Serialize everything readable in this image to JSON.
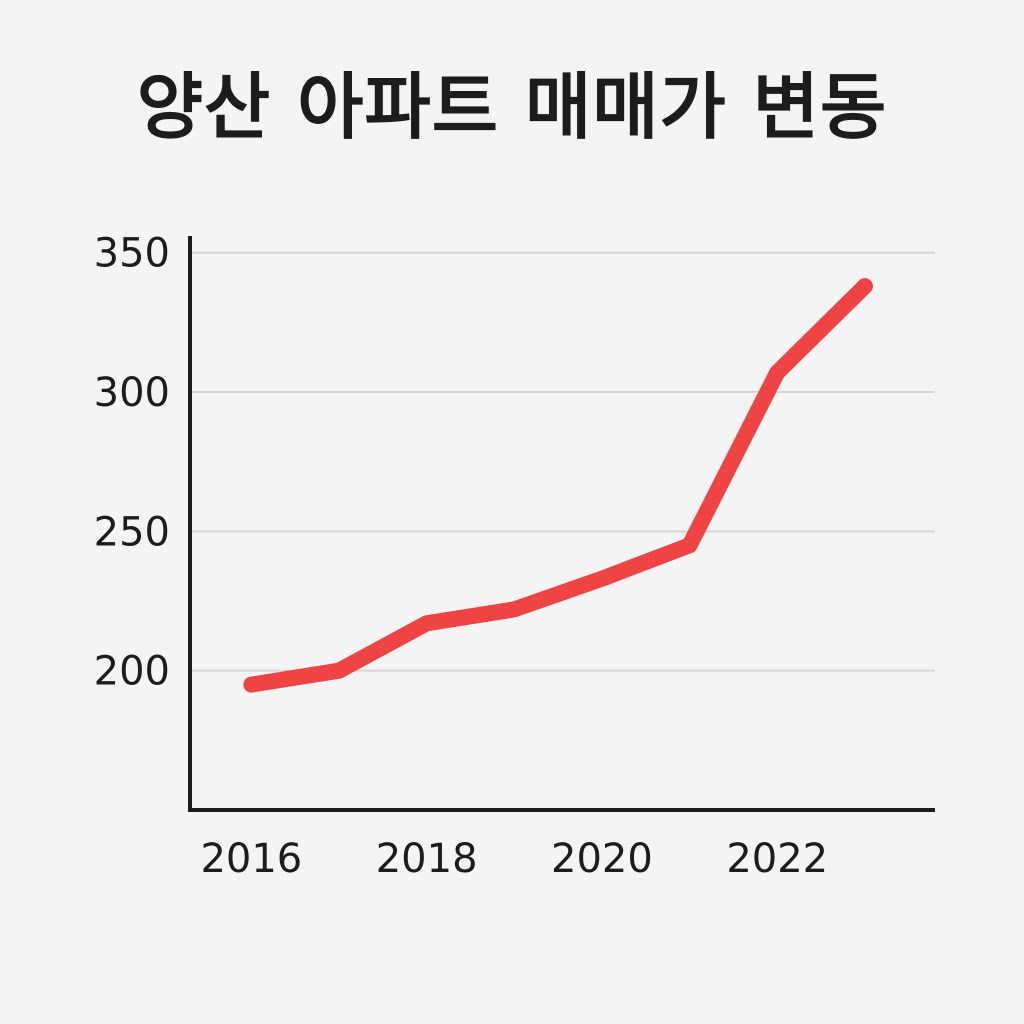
{
  "chart_data": {
    "type": "line",
    "title": "양산 아파트 매매가 변동",
    "xlabel": "",
    "ylabel": "",
    "x": [
      2016,
      2017,
      2018,
      2019,
      2020,
      2021,
      2022,
      2023
    ],
    "x_tick_labels": [
      "2016",
      "2018",
      "2020",
      "2022"
    ],
    "x_ticks": [
      2016,
      2018,
      2020,
      2022
    ],
    "y_tick_labels": [
      "200",
      "250",
      "300",
      "350"
    ],
    "y_ticks": [
      200,
      250,
      300,
      350
    ],
    "xlim": [
      2015.3,
      2023.8
    ],
    "ylim": [
      150,
      356
    ],
    "grid": "horizontal",
    "series": [
      {
        "values": [
          195,
          200,
          217,
          222,
          233,
          245,
          307,
          338
        ],
        "color": "#ee4444"
      }
    ],
    "axis_color": "#1c1c1c",
    "grid_color": "#d6d6d6"
  }
}
